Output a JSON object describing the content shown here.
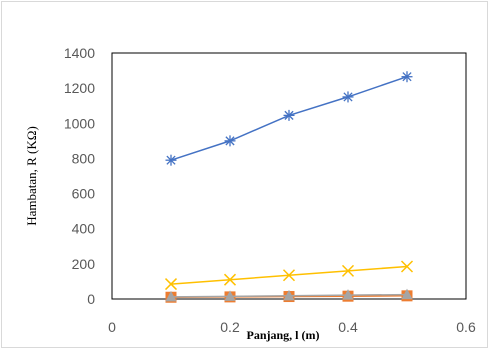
{
  "chart_data": {
    "type": "line",
    "title": "",
    "xlabel": "Panjang, l (m)",
    "ylabel": "Hambatan, R (KΩ)",
    "xlim": [
      0,
      0.6
    ],
    "ylim": [
      0,
      1400
    ],
    "x_ticks": [
      "0",
      "0.2",
      "0.4",
      "0.6"
    ],
    "y_ticks": [
      "0",
      "200",
      "400",
      "600",
      "800",
      "1000",
      "1200",
      "1400"
    ],
    "grid": false,
    "legend": "none",
    "x": [
      0.1,
      0.2,
      0.3,
      0.4,
      0.5
    ],
    "series": [
      {
        "values": [
          790,
          900,
          1045,
          1150,
          1265
        ],
        "color": "#4472c4",
        "marker": "asterisk"
      },
      {
        "values": [
          85,
          110,
          135,
          160,
          185
        ],
        "color": "#ffc000",
        "marker": "x"
      },
      {
        "values": [
          10,
          12,
          14,
          16,
          18
        ],
        "color": "#ed7d31",
        "marker": "square"
      },
      {
        "values": [
          12,
          15,
          18,
          22,
          25
        ],
        "color": "#a5a5a5",
        "marker": "triangle"
      }
    ]
  }
}
